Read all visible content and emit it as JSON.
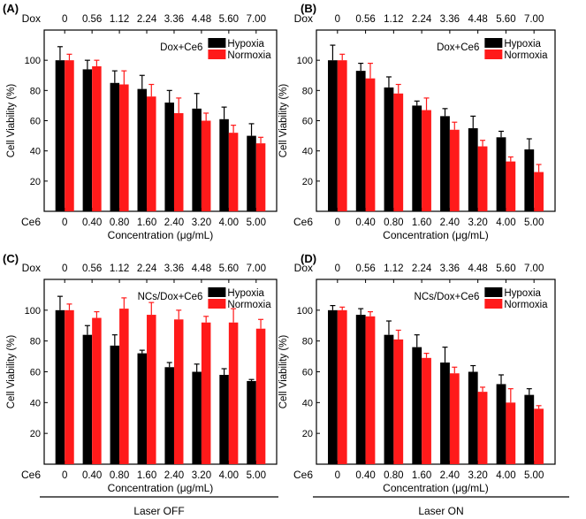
{
  "colors": {
    "hypoxia": "#000000",
    "normoxia": "#ff1a1a",
    "error": "#ff1a1a",
    "axis": "#000000"
  },
  "footer": {
    "left_label": "Laser OFF",
    "right_label": "Laser ON"
  },
  "chart_data": [
    {
      "panel_label": "(A)",
      "type": "bar",
      "categories": [
        "0",
        "0.40",
        "0.80",
        "1.60",
        "2.40",
        "3.20",
        "4.00",
        "5.00"
      ],
      "top_categories": [
        "0",
        "0.56",
        "1.12",
        "2.24",
        "3.36",
        "4.48",
        "5.60",
        "7.00"
      ],
      "top_axis_name": "Dox",
      "bottom_axis_name": "Ce6",
      "xlabel": "Concentration (μg/mL)",
      "ylabel": "Cell Viability (%)",
      "ylim": [
        0,
        120
      ],
      "yticks": [
        "20",
        "40",
        "60",
        "80",
        "100"
      ],
      "annotation": "Dox+Ce6",
      "series": [
        {
          "name": "Hypoxia",
          "values": [
            100,
            94,
            85,
            81,
            72,
            68,
            61,
            50
          ],
          "errors": [
            9,
            6,
            8,
            9,
            8,
            10,
            8,
            8
          ]
        },
        {
          "name": "Normoxia",
          "values": [
            100,
            96,
            84,
            76,
            65,
            60,
            52,
            45
          ],
          "errors": [
            4,
            4,
            9,
            8,
            10,
            5,
            5,
            4
          ]
        }
      ]
    },
    {
      "panel_label": "(B)",
      "type": "bar",
      "categories": [
        "0",
        "0.40",
        "0.80",
        "1.60",
        "2.40",
        "3.20",
        "4.00",
        "5.00"
      ],
      "top_categories": [
        "0",
        "0.56",
        "1.12",
        "2.24",
        "3.36",
        "4.48",
        "5.60",
        "7.00"
      ],
      "top_axis_name": "Dox",
      "bottom_axis_name": "Ce6",
      "xlabel": "Concentration (μg/mL)",
      "ylabel": "Cell Viability (%)",
      "ylim": [
        0,
        120
      ],
      "yticks": [
        "20",
        "40",
        "60",
        "80",
        "100"
      ],
      "annotation": "Dox+Ce6",
      "series": [
        {
          "name": "Hypoxia",
          "values": [
            100,
            93,
            82,
            70,
            63,
            55,
            49,
            41
          ],
          "errors": [
            10,
            5,
            7,
            3,
            5,
            8,
            4,
            7
          ]
        },
        {
          "name": "Normoxia",
          "values": [
            100,
            88,
            78,
            67,
            54,
            43,
            33,
            26
          ],
          "errors": [
            4,
            10,
            6,
            8,
            5,
            4,
            3,
            5
          ]
        }
      ]
    },
    {
      "panel_label": "(C)",
      "type": "bar",
      "categories": [
        "0",
        "0.40",
        "0.80",
        "1.60",
        "2.40",
        "3.20",
        "4.00",
        "5.00"
      ],
      "top_categories": [
        "0",
        "0.56",
        "1.12",
        "2.24",
        "3.36",
        "4.48",
        "5.60",
        "7.00"
      ],
      "top_axis_name": "Dox",
      "bottom_axis_name": "Ce6",
      "xlabel": "Concentration (μg/mL)",
      "ylabel": "Cell Viability (%)",
      "ylim": [
        0,
        120
      ],
      "yticks": [
        "20",
        "40",
        "60",
        "80",
        "100"
      ],
      "annotation": "NCs/Dox+Ce6",
      "series": [
        {
          "name": "Hypoxia",
          "values": [
            100,
            84,
            77,
            72,
            63,
            60,
            58,
            54
          ],
          "errors": [
            9,
            6,
            7,
            2,
            3,
            5,
            4,
            1
          ]
        },
        {
          "name": "Normoxia",
          "values": [
            100,
            95,
            101,
            97,
            94,
            92,
            92,
            88
          ],
          "errors": [
            4,
            4,
            7,
            8,
            6,
            4,
            9,
            6
          ]
        }
      ]
    },
    {
      "panel_label": "(D)",
      "type": "bar",
      "categories": [
        "0",
        "0.40",
        "0.80",
        "1.60",
        "2.40",
        "3.20",
        "4.00",
        "5.00"
      ],
      "top_categories": [
        "0",
        "0.56",
        "1.12",
        "2.24",
        "3.36",
        "4.48",
        "5.60",
        "7.00"
      ],
      "top_axis_name": "Dox",
      "bottom_axis_name": "Ce6",
      "xlabel": "Concentration (μg/mL)",
      "ylabel": "Cell Viability (%)",
      "ylim": [
        0,
        120
      ],
      "yticks": [
        "20",
        "40",
        "60",
        "80",
        "100"
      ],
      "annotation": "NCs/Dox+Ce6",
      "series": [
        {
          "name": "Hypoxia",
          "values": [
            100,
            97,
            84,
            76,
            66,
            60,
            52,
            45
          ],
          "errors": [
            3,
            4,
            9,
            8,
            10,
            4,
            6,
            4
          ]
        },
        {
          "name": "Normoxia",
          "values": [
            100,
            96,
            81,
            69,
            59,
            47,
            40,
            36
          ],
          "errors": [
            2,
            3,
            6,
            3,
            4,
            3,
            9,
            2
          ]
        }
      ]
    }
  ]
}
